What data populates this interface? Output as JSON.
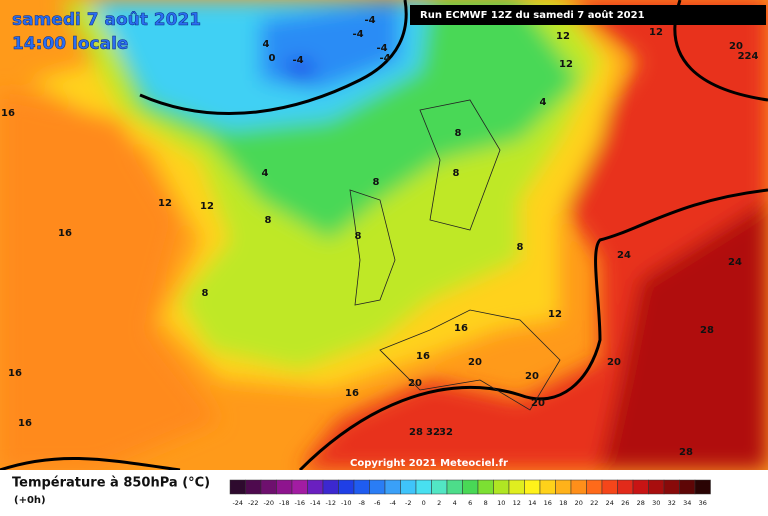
{
  "header": {
    "date": "samedi 7 août 2021",
    "time": "14:00 locale",
    "run": "Run ECMWF 12Z du samedi 7 août 2021"
  },
  "copyright": "Copyright 2021 Meteociel.fr",
  "legend": {
    "title": "Température à 850hPa (°C)",
    "subtitle": "(+0h)",
    "ticks": [
      -24,
      -22,
      -20,
      -18,
      -16,
      -14,
      -12,
      -10,
      -8,
      -6,
      -4,
      -2,
      0,
      2,
      4,
      6,
      8,
      10,
      12,
      14,
      16,
      18,
      20,
      22,
      24,
      26,
      28,
      30,
      32,
      34,
      36
    ],
    "colors": [
      "#2e0a2e",
      "#4e0a4e",
      "#6e106e",
      "#8e148e",
      "#a21ca2",
      "#6a1fc0",
      "#3c28d0",
      "#1f3fe6",
      "#1f5cf0",
      "#2a7df5",
      "#3aa0f8",
      "#3fc4fa",
      "#48e0f0",
      "#52e6c4",
      "#4ddd8a",
      "#49d856",
      "#7ce033",
      "#b0e623",
      "#e0ee1f",
      "#fff21a",
      "#ffd21a",
      "#ffb21a",
      "#ff8f1a",
      "#ff6a1a",
      "#f5461a",
      "#e22a1a",
      "#c81414",
      "#a80e0e",
      "#880a0a",
      "#5e0606",
      "#2a0404"
    ]
  },
  "contour_labels": [
    "-4",
    "-4",
    "-4",
    "-4",
    "4",
    "0",
    "-4",
    "12",
    "12",
    "12",
    "20",
    "224",
    "16",
    "4",
    "4",
    "8",
    "8",
    "8",
    "8",
    "8",
    "8",
    "8",
    "12",
    "12",
    "16",
    "16",
    "16",
    "24",
    "24",
    "28",
    "12",
    "16",
    "16",
    "20",
    "20",
    "16",
    "20",
    "20",
    "20",
    "28",
    "32",
    "32",
    "28"
  ]
}
